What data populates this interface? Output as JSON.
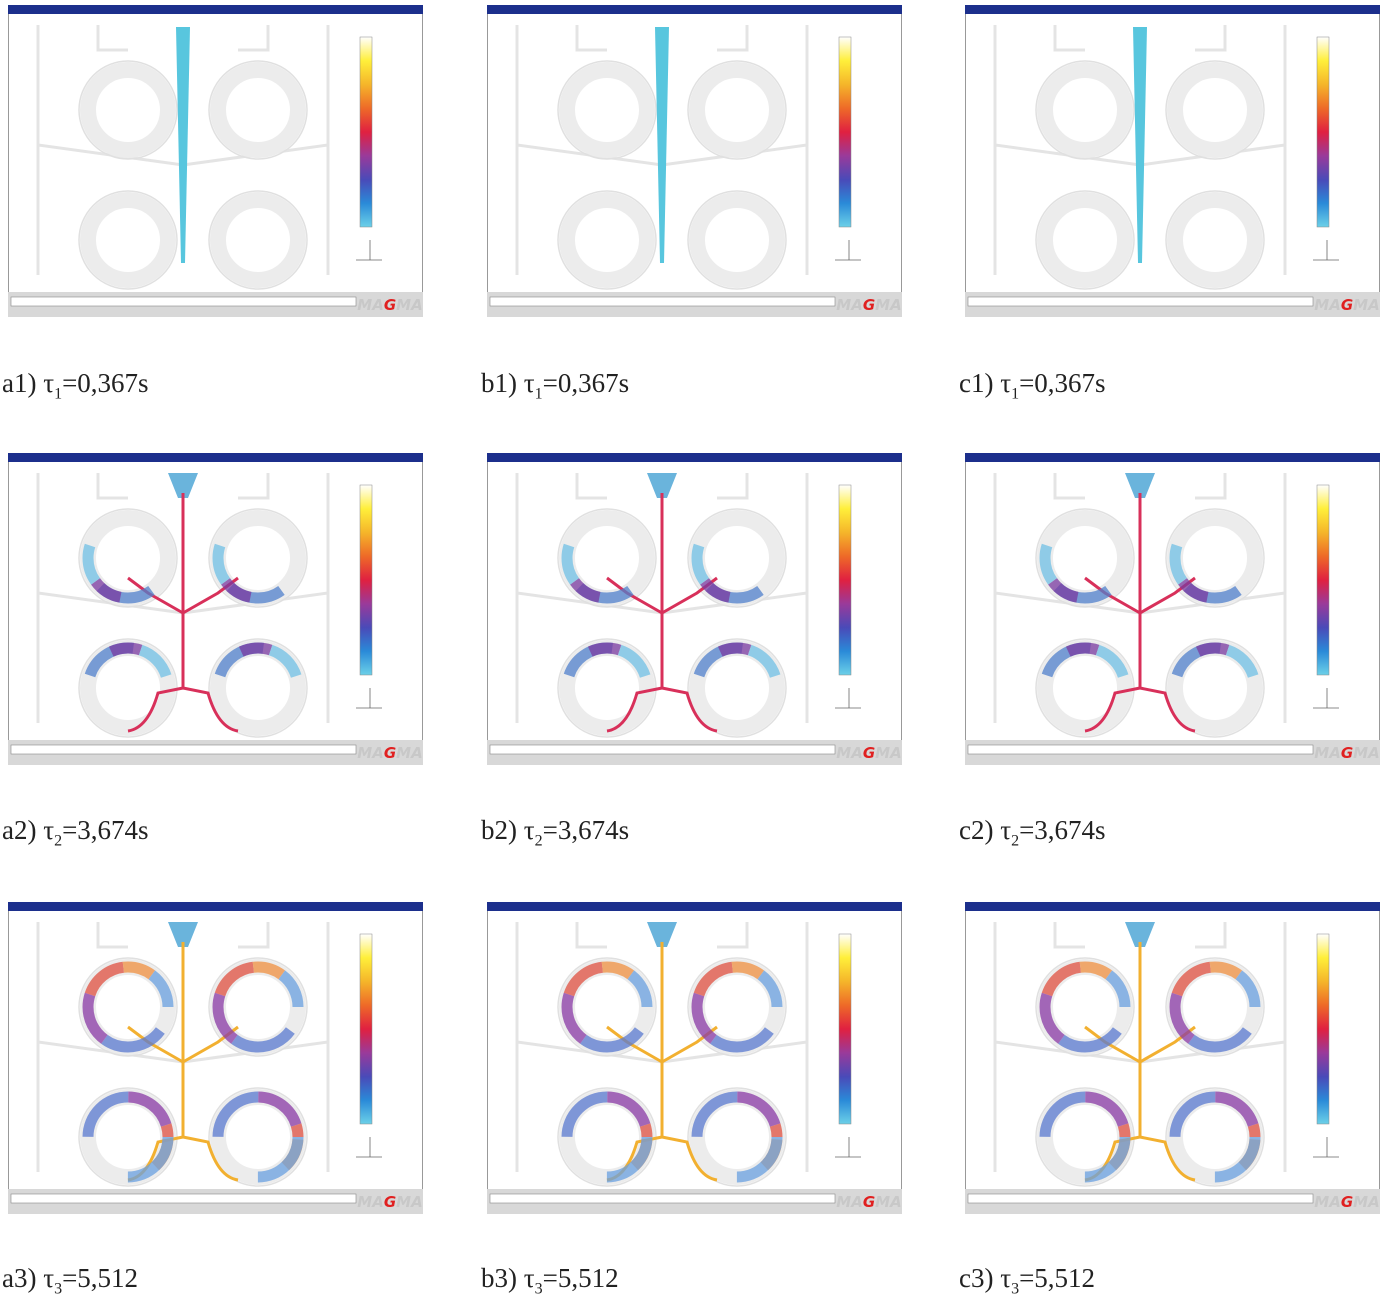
{
  "panels": [
    {
      "caption": {
        "prefix": "a1) τ",
        "sub": "1",
        "suffix": "=0,367s"
      }
    },
    {
      "caption": {
        "prefix": "b1) τ",
        "sub": "1",
        "suffix": "=0,367s"
      }
    },
    {
      "caption": {
        "prefix": "c1) τ",
        "sub": "1",
        "suffix": "=0,367s"
      }
    },
    {
      "caption": {
        "prefix": "a2) τ",
        "sub": "2",
        "suffix": "=3,674s"
      }
    },
    {
      "caption": {
        "prefix": "b2) τ",
        "sub": "2",
        "suffix": "=3,674s"
      }
    },
    {
      "caption": {
        "prefix": "c2) τ",
        "sub": "2",
        "suffix": "=3,674s"
      }
    },
    {
      "caption": {
        "prefix": "a3) τ",
        "sub": "3",
        "suffix": "=5,512"
      }
    },
    {
      "caption": {
        "prefix": "b3) τ",
        "sub": "3",
        "suffix": "=5,512"
      }
    },
    {
      "caption": {
        "prefix": "c3) τ",
        "sub": "3",
        "suffix": "=5,512"
      }
    }
  ],
  "logo": {
    "left": "MA",
    "mid": "G",
    "right": "MA"
  }
}
